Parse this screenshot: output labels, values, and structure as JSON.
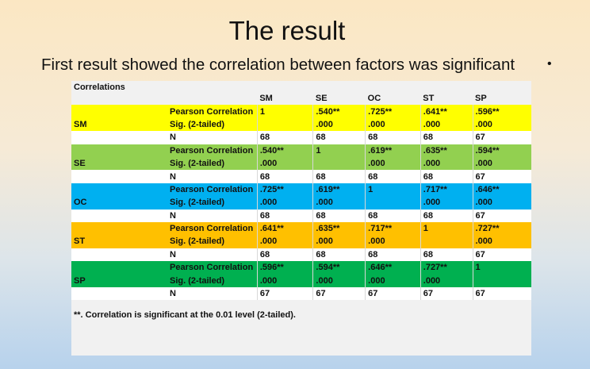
{
  "slide": {
    "title": "The result",
    "subtitle": "First result showed the correlation between factors was significant",
    "bullet": "•"
  },
  "table": {
    "caption": "Correlations",
    "columns": [
      "SM",
      "SE",
      "OC",
      "ST",
      "SP"
    ],
    "groups": [
      {
        "label": "SM",
        "color": "#ffff00",
        "rows": [
          {
            "stat": "Pearson Correlation",
            "values": [
              "1",
              ".540**",
              ".725**",
              ".641**",
              ".596**"
            ]
          },
          {
            "stat": "Sig. (2-tailed)",
            "values": [
              "",
              ".000",
              ".000",
              ".000",
              ".000"
            ]
          },
          {
            "stat": "N",
            "values": [
              "68",
              "68",
              "68",
              "68",
              "67"
            ]
          }
        ]
      },
      {
        "label": "SE",
        "color": "#92d050",
        "rows": [
          {
            "stat": "Pearson Correlation",
            "values": [
              ".540**",
              "1",
              ".619**",
              ".635**",
              ".594**"
            ]
          },
          {
            "stat": "Sig. (2-tailed)",
            "values": [
              ".000",
              "",
              ".000",
              ".000",
              ".000"
            ]
          },
          {
            "stat": "N",
            "values": [
              "68",
              "68",
              "68",
              "68",
              "67"
            ]
          }
        ]
      },
      {
        "label": "OC",
        "color": "#00b0f0",
        "rows": [
          {
            "stat": "Pearson Correlation",
            "values": [
              ".725**",
              ".619**",
              "1",
              ".717**",
              ".646**"
            ]
          },
          {
            "stat": "Sig. (2-tailed)",
            "values": [
              ".000",
              ".000",
              "",
              ".000",
              ".000"
            ]
          },
          {
            "stat": "N",
            "values": [
              "68",
              "68",
              "68",
              "68",
              "67"
            ]
          }
        ]
      },
      {
        "label": "ST",
        "color": "#ffc000",
        "rows": [
          {
            "stat": "Pearson Correlation",
            "values": [
              ".641**",
              ".635**",
              ".717**",
              "1",
              ".727**"
            ]
          },
          {
            "stat": "Sig. (2-tailed)",
            "values": [
              ".000",
              ".000",
              ".000",
              "",
              ".000"
            ]
          },
          {
            "stat": "N",
            "values": [
              "68",
              "68",
              "68",
              "68",
              "67"
            ]
          }
        ]
      },
      {
        "label": "SP",
        "color": "#00b050",
        "rows": [
          {
            "stat": "Pearson Correlation",
            "values": [
              ".596**",
              ".594**",
              ".646**",
              ".727**",
              "1"
            ]
          },
          {
            "stat": "Sig. (2-tailed)",
            "values": [
              ".000",
              ".000",
              ".000",
              ".000",
              ""
            ]
          },
          {
            "stat": "N",
            "values": [
              "67",
              "67",
              "67",
              "67",
              "67"
            ]
          }
        ]
      }
    ],
    "footnote": "**. Correlation is significant at the 0.01 level (2-tailed)."
  }
}
